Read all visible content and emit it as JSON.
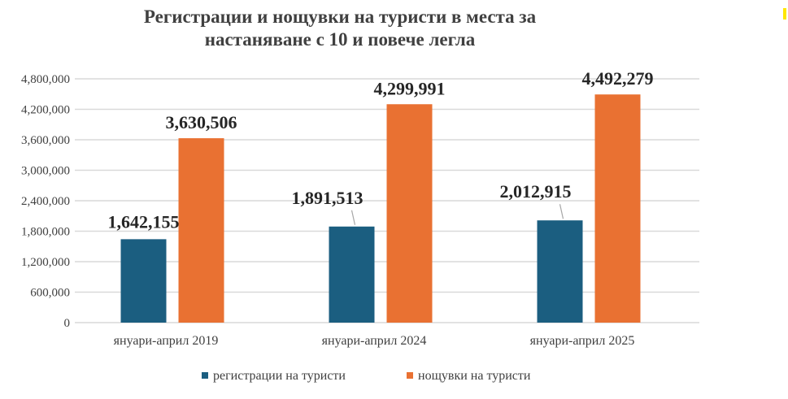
{
  "chart_data": {
    "type": "bar",
    "title": "Регистрации и нощувки на туристи в места за настаняване с 10 и повече легла",
    "title_lines": [
      "Регистрации и нощувки на туристи в места за",
      "настаняване с 10 и повече легла"
    ],
    "categories": [
      "януари-април 2019",
      "януари-април 2024",
      "януари-април 2025"
    ],
    "series": [
      {
        "name": "регистрации  на туристи",
        "values": [
          1642155,
          1891513,
          2012915
        ],
        "labels": [
          "1,642,155",
          "1,891,513",
          "2,012,915"
        ],
        "color": "#1B5E80"
      },
      {
        "name": "нощувки на туристи",
        "values": [
          3630506,
          4299991,
          4492279
        ],
        "labels": [
          "3,630,506",
          "4,299,991",
          "4,492,279"
        ],
        "color": "#E97132"
      }
    ],
    "ylim": [
      0,
      4800000
    ],
    "yticks": [
      0,
      600000,
      1200000,
      1800000,
      2400000,
      3000000,
      3600000,
      4200000,
      4800000
    ],
    "ytick_labels": [
      "0",
      "600,000",
      "1,200,000",
      "1,800,000",
      "2,400,000",
      "3,000,000",
      "3,600,000",
      "4,200,000",
      "4,800,000"
    ],
    "grid": true,
    "legend_position": "bottom",
    "xlabel": "",
    "ylabel": ""
  }
}
